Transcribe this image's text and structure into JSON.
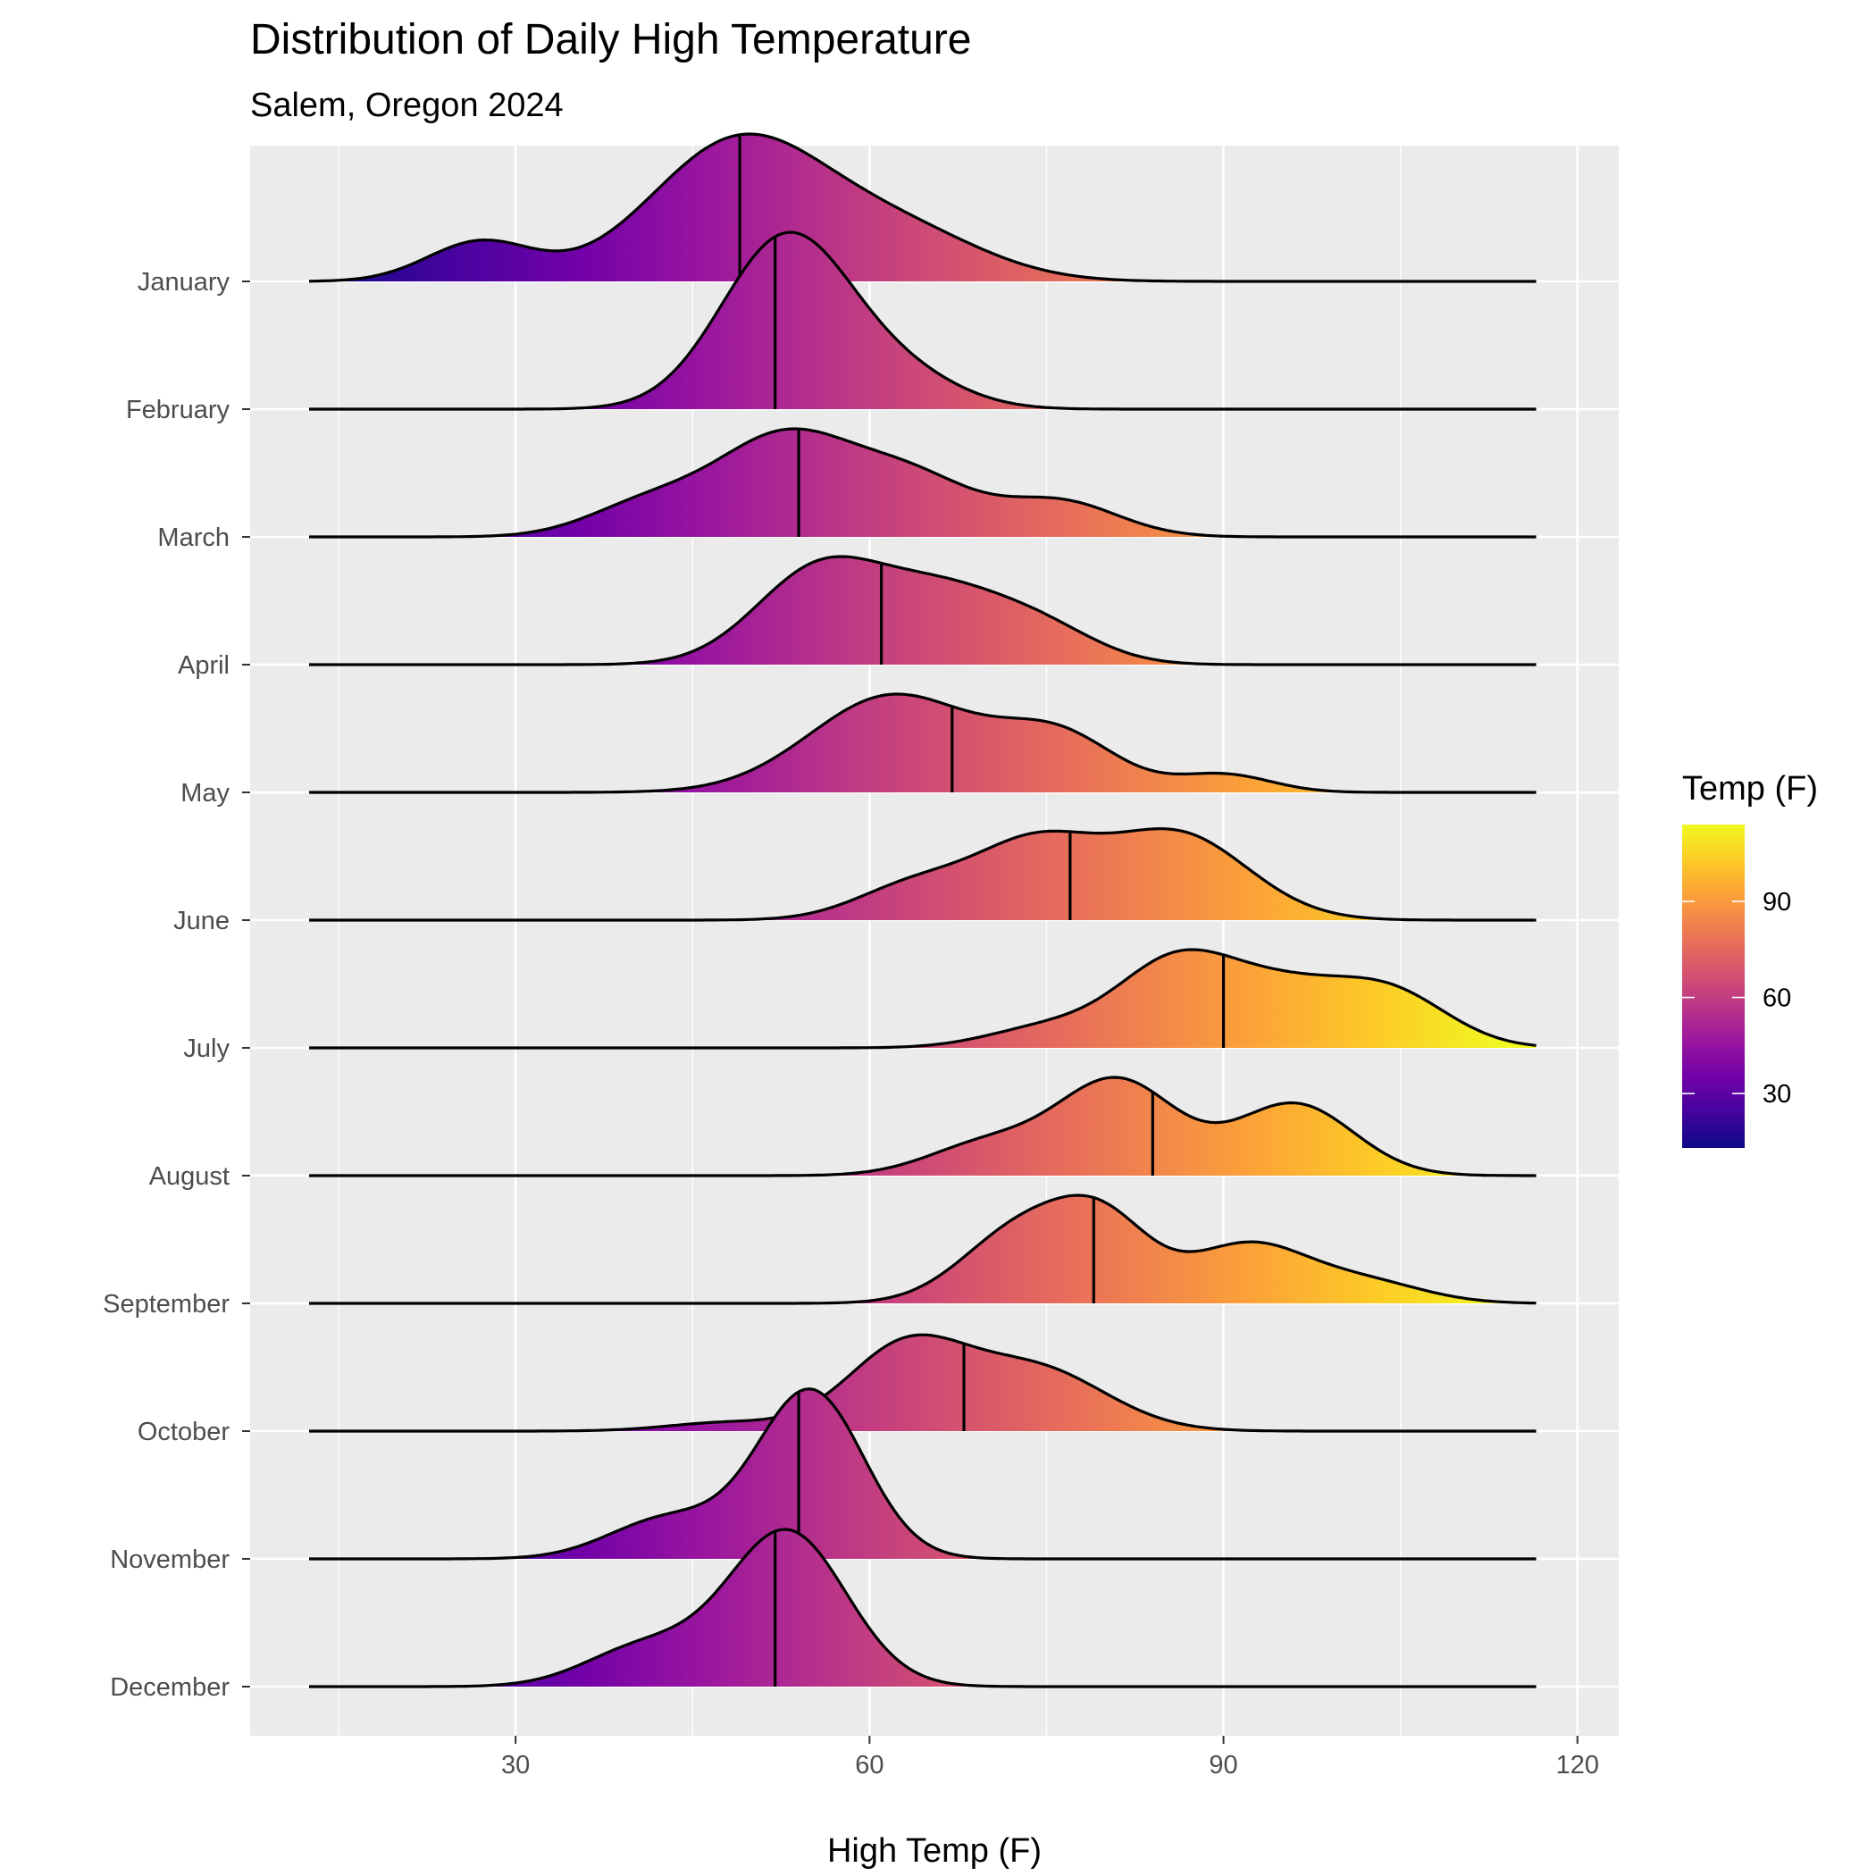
{
  "chart_data": {
    "type": "ridgeline",
    "title": "Distribution of Daily High Temperature",
    "subtitle": "Salem, Oregon 2024",
    "xlabel": "High Temp (F)",
    "xlim": [
      7.5,
      123.5
    ],
    "density_range": [
      12.5,
      116.5
    ],
    "xticks": [
      30,
      60,
      90,
      120
    ],
    "grid": true,
    "color_scale": "plasma",
    "legend": {
      "title": "Temp (F)",
      "position": "right",
      "range": [
        13,
        114
      ],
      "ticks": [
        30,
        60,
        90
      ]
    },
    "series": [
      {
        "name": "January",
        "median": 49,
        "peak": 1.5,
        "components": [
          [
            27,
            4.5,
            0.42
          ],
          [
            49,
            7.5,
            1.5
          ],
          [
            63,
            7,
            0.48
          ]
        ]
      },
      {
        "name": "February",
        "median": 52,
        "peak": 1.8,
        "components": [
          [
            53,
            5.5,
            1.82
          ],
          [
            63,
            5,
            0.3
          ]
        ]
      },
      {
        "name": "March",
        "median": 54,
        "peak": 1.1,
        "components": [
          [
            41,
            5,
            0.3
          ],
          [
            53,
            6,
            1.0
          ],
          [
            64,
            5,
            0.5
          ],
          [
            76,
            5,
            0.35
          ]
        ]
      },
      {
        "name": "April",
        "median": 61,
        "peak": 1.1,
        "components": [
          [
            56,
            5.5,
            1.0
          ],
          [
            66,
            5,
            0.6
          ],
          [
            74,
            5,
            0.4
          ]
        ]
      },
      {
        "name": "May",
        "median": 67,
        "peak": 1.0,
        "components": [
          [
            62,
            7,
            0.98
          ],
          [
            76,
            5,
            0.55
          ],
          [
            90,
            4,
            0.18
          ]
        ]
      },
      {
        "name": "June",
        "median": 77,
        "peak": 0.93,
        "components": [
          [
            64,
            5,
            0.35
          ],
          [
            74,
            5,
            0.7
          ],
          [
            86,
            6,
            0.85
          ]
        ]
      },
      {
        "name": "July",
        "median": 90,
        "peak": 1.0,
        "components": [
          [
            75,
            5,
            0.2
          ],
          [
            86,
            5,
            0.85
          ],
          [
            95,
            5,
            0.5
          ],
          [
            104,
            5,
            0.55
          ]
        ]
      },
      {
        "name": "August",
        "median": 84,
        "peak": 1.0,
        "components": [
          [
            70,
            5,
            0.32
          ],
          [
            81,
            5,
            0.95
          ],
          [
            96,
            5,
            0.72
          ]
        ]
      },
      {
        "name": "September",
        "median": 79,
        "peak": 1.1,
        "components": [
          [
            73,
            5,
            0.65
          ],
          [
            80,
            4,
            0.6
          ],
          [
            92,
            5,
            0.5
          ],
          [
            102,
            5,
            0.18
          ]
        ]
      },
      {
        "name": "October",
        "median": 68,
        "peak": 0.98,
        "components": [
          [
            48,
            5,
            0.1
          ],
          [
            63,
            5,
            0.95
          ],
          [
            74,
            6,
            0.72
          ]
        ]
      },
      {
        "name": "November",
        "median": 54,
        "peak": 1.73,
        "components": [
          [
            43,
            5,
            0.4
          ],
          [
            55,
            4.5,
            1.65
          ]
        ]
      },
      {
        "name": "December",
        "median": 52,
        "peak": 1.6,
        "components": [
          [
            41,
            5,
            0.4
          ],
          [
            53,
            5,
            1.55
          ]
        ]
      }
    ]
  }
}
